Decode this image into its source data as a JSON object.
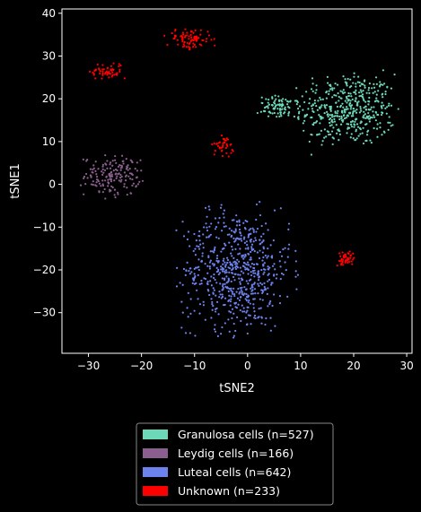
{
  "chart_data": {
    "type": "scatter",
    "xlabel": "tSNE2",
    "ylabel": "tSNE1",
    "xlim": [
      -35,
      31
    ],
    "ylim": [
      -39.5,
      41
    ],
    "xticks": [
      -30,
      -20,
      -10,
      0,
      10,
      20,
      30
    ],
    "yticks": [
      -30,
      -20,
      -10,
      0,
      10,
      20,
      30,
      40
    ],
    "xtick_labels": [
      "−30",
      "−20",
      "−10",
      "0",
      "10",
      "20",
      "30"
    ],
    "ytick_labels": [
      "−30",
      "−20",
      "−10",
      "0",
      "10",
      "20",
      "30",
      "40"
    ],
    "grid": false,
    "legend_position": "bottom-center",
    "series": [
      {
        "name": "Granulosa cells (n=527)",
        "color": "#6dd8b8",
        "count": 527,
        "clusters": [
          {
            "center": [
              19,
              17.5
            ],
            "spread": [
              4.5,
              4.2
            ],
            "count": 440
          },
          {
            "center": [
              6,
              18
            ],
            "spread": [
              2.0,
              1.3
            ],
            "count": 87
          }
        ]
      },
      {
        "name": "Leydig cells (n=166)",
        "color": "#8a5f8e",
        "count": 166,
        "clusters": [
          {
            "center": [
              -25.5,
              2
            ],
            "spread": [
              2.6,
              2.3
            ],
            "count": 166
          }
        ]
      },
      {
        "name": "Luteal cells (n=642)",
        "color": "#6c83ee",
        "count": 642,
        "clusters": [
          {
            "center": [
              -2,
              -20
            ],
            "spread": [
              5.0,
              7.0
            ],
            "count": 642
          }
        ]
      },
      {
        "name": "Unknown (n=233)",
        "color": "#ff0000",
        "count": 233,
        "clusters": [
          {
            "center": [
              -11,
              34
            ],
            "spread": [
              2.1,
              1.2
            ],
            "count": 85
          },
          {
            "center": [
              -26.5,
              26.5
            ],
            "spread": [
              1.6,
              1.0
            ],
            "count": 60
          },
          {
            "center": [
              -4.5,
              9
            ],
            "spread": [
              1.0,
              1.1
            ],
            "count": 38
          },
          {
            "center": [
              18.5,
              -17.5
            ],
            "spread": [
              0.8,
              1.0
            ],
            "count": 50
          }
        ]
      }
    ]
  }
}
